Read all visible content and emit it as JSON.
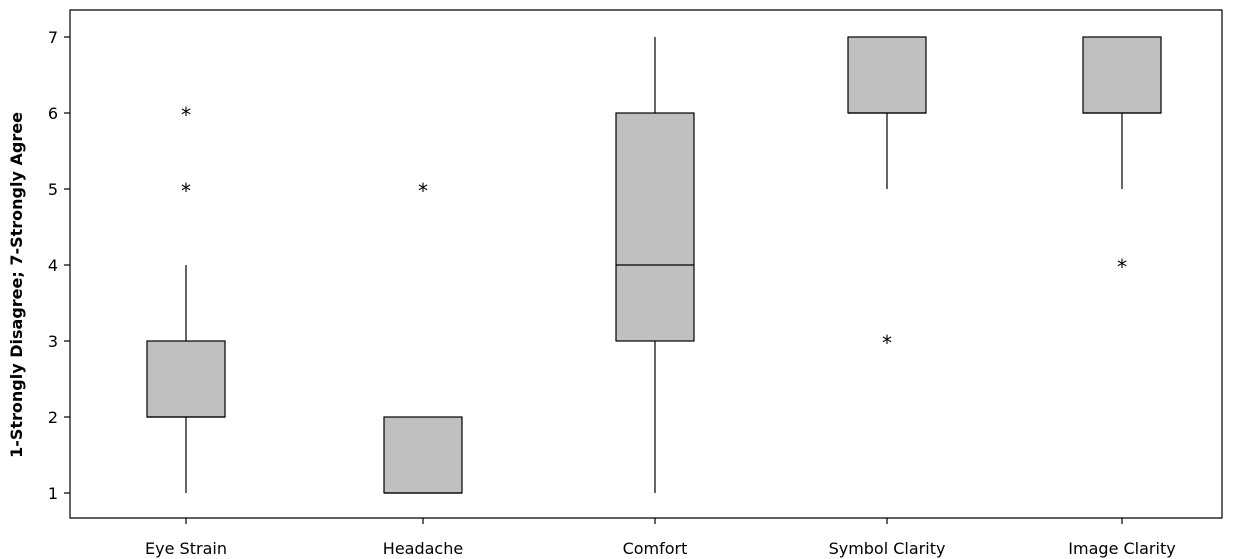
{
  "chart_data": {
    "type": "boxplot",
    "categories": [
      "Eye Strain",
      "Headache",
      "Comfort",
      "Symbol Clarity",
      "Image Clarity"
    ],
    "ylabel": "1-Strongly Disagree; 7-Strongly Agree",
    "xlabel": "",
    "ylim": [
      0.7,
      7.35
    ],
    "yticks": [
      1,
      2,
      3,
      4,
      5,
      6,
      7
    ],
    "grid": false,
    "box_color": "#c0c0c0",
    "boxes": [
      {
        "category": "Eye Strain",
        "whisker_low": 1,
        "q1": 2,
        "median": 2,
        "q3": 3,
        "whisker_high": 4,
        "outliers": [
          5,
          6
        ]
      },
      {
        "category": "Headache",
        "whisker_low": 1,
        "q1": 1,
        "median": 1,
        "q3": 2,
        "whisker_high": 2,
        "outliers": [
          5
        ]
      },
      {
        "category": "Comfort",
        "whisker_low": 1,
        "q1": 3,
        "median": 4,
        "q3": 6,
        "whisker_high": 7,
        "outliers": []
      },
      {
        "category": "Symbol Clarity",
        "whisker_low": 5,
        "q1": 6,
        "median": 6,
        "q3": 7,
        "whisker_high": 7,
        "outliers": [
          3
        ]
      },
      {
        "category": "Image Clarity",
        "whisker_low": 5,
        "q1": 6,
        "median": 6,
        "q3": 7,
        "whisker_high": 7,
        "outliers": [
          4
        ]
      }
    ]
  }
}
